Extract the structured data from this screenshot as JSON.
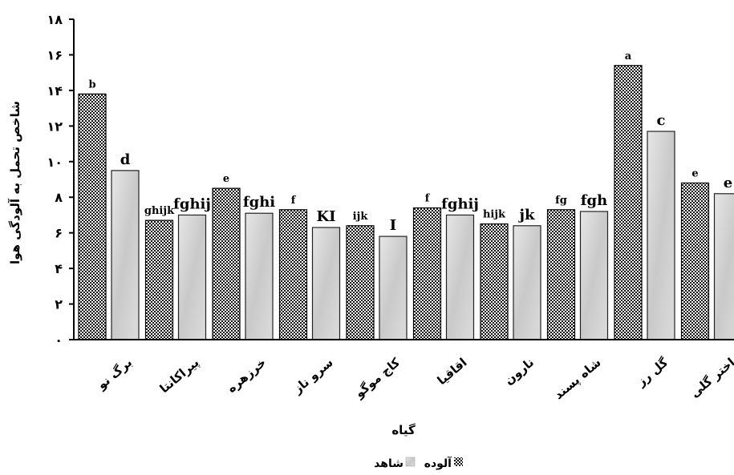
{
  "chart_data": {
    "type": "bar",
    "xlabel": "گیاه",
    "ylabel": "شاخص تحمل به آلودگی هوا",
    "ylim": [
      0,
      18
    ],
    "yticks": [
      "۰",
      "۲",
      "۴",
      "۶",
      "۸",
      "۱۰",
      "۱۲",
      "۱۴",
      "۱۶",
      "۱۸"
    ],
    "categories": [
      "برگ نو",
      "پیراکانتا",
      "خرزهره",
      "سرو ناز",
      "کاج موگو",
      "اقاقیا",
      "نارون",
      "شاه پسند",
      "گل رز",
      "اختر گلی"
    ],
    "series": [
      {
        "name": "آلوده",
        "color": "#1a1a1a",
        "values": [
          13.8,
          6.7,
          8.5,
          7.3,
          6.4,
          7.4,
          6.5,
          7.3,
          15.4,
          8.8
        ],
        "labels": [
          "b",
          "ghijk",
          "e",
          "f",
          "ijk",
          "f",
          "hijk",
          "fg",
          "a",
          "e"
        ]
      },
      {
        "name": "شاهد",
        "color": "#cfcfcf",
        "values": [
          9.5,
          7.0,
          7.1,
          6.3,
          5.8,
          7.0,
          6.4,
          7.2,
          11.7,
          8.2
        ],
        "labels": [
          "d",
          "fghij",
          "fghi",
          "KI",
          "I",
          "fghij",
          "jk",
          "fgh",
          "c",
          "e"
        ]
      }
    ],
    "legend": [
      "شاهد",
      "آلوده"
    ],
    "legend_position": "bottom",
    "grid": false
  }
}
